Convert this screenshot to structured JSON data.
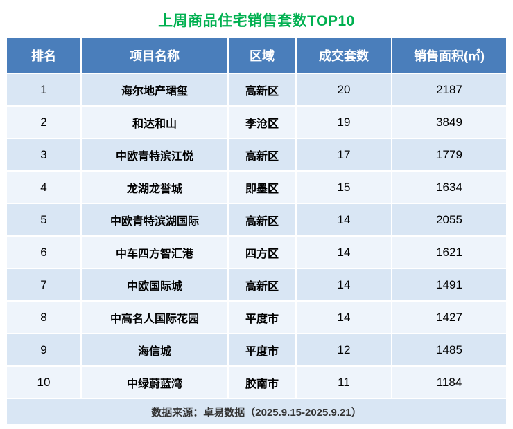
{
  "title": "上周商品住宅销售套数TOP10",
  "colors": {
    "title": "#00B050",
    "header_bg": "#4A7EBB",
    "row_odd_bg": "#D9E6F4",
    "row_even_bg": "#EEF4FB",
    "footer_bg": "#D9E6F4"
  },
  "chart_data": {
    "type": "table",
    "title": "上周商品住宅销售套数TOP10",
    "columns": [
      "排名",
      "项目名称",
      "区域",
      "成交套数",
      "销售面积(㎡)"
    ],
    "rows": [
      [
        "1",
        "海尔地产珺玺",
        "高新区",
        "20",
        "2187"
      ],
      [
        "2",
        "和达和山",
        "李沧区",
        "19",
        "3849"
      ],
      [
        "3",
        "中欧青特滨江悦",
        "高新区",
        "17",
        "1779"
      ],
      [
        "4",
        "龙湖龙誉城",
        "即墨区",
        "15",
        "1634"
      ],
      [
        "5",
        "中欧青特滨湖国际",
        "高新区",
        "14",
        "2055"
      ],
      [
        "6",
        "中车四方智汇港",
        "四方区",
        "14",
        "1621"
      ],
      [
        "7",
        "中欧国际城",
        "高新区",
        "14",
        "1491"
      ],
      [
        "8",
        "中高名人国际花园",
        "平度市",
        "14",
        "1427"
      ],
      [
        "9",
        "海信城",
        "平度市",
        "12",
        "1485"
      ],
      [
        "10",
        "中绿蔚蓝湾",
        "胶南市",
        "11",
        "1184"
      ]
    ],
    "footer": "数据来源：卓易数据（2025.9.15-2025.9.21）"
  }
}
